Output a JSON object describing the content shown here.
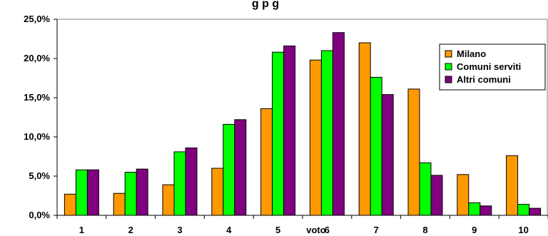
{
  "chart_data": {
    "type": "bar",
    "title": "g    p    g",
    "xlabel": "voto",
    "ylabel": "",
    "categories": [
      "1",
      "2",
      "3",
      "4",
      "5",
      "6",
      "7",
      "8",
      "9",
      "10"
    ],
    "ylim": [
      0,
      25
    ],
    "yticks": [
      0,
      5,
      10,
      15,
      20,
      25
    ],
    "ytick_labels": [
      "0,0%",
      "5,0%",
      "10,0%",
      "15,0%",
      "20,0%",
      "25,0%"
    ],
    "grid": false,
    "legend_position": "top-right",
    "series": [
      {
        "name": "Milano",
        "color": "#FF9900",
        "values": [
          2.7,
          2.8,
          3.9,
          6.0,
          13.6,
          19.8,
          22.0,
          16.1,
          5.2,
          7.6
        ]
      },
      {
        "name": "Comuni serviti",
        "color": "#00FF00",
        "values": [
          5.8,
          5.5,
          8.1,
          11.6,
          20.8,
          21.0,
          17.6,
          6.7,
          1.6,
          1.4
        ]
      },
      {
        "name": "Altri comuni",
        "color": "#800080",
        "values": [
          5.8,
          5.9,
          8.6,
          12.2,
          21.6,
          23.3,
          15.4,
          5.1,
          1.2,
          0.9
        ]
      }
    ]
  }
}
